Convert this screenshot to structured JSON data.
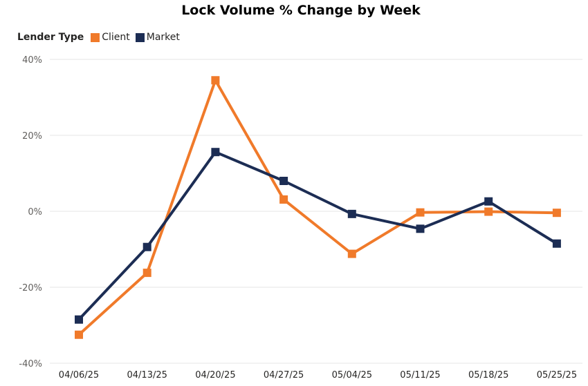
{
  "chart_data": {
    "type": "line",
    "title": "Lock Volume % Change by Week",
    "legend_title": "Lender Type",
    "categories": [
      "04/06/25",
      "04/13/25",
      "04/20/25",
      "04/27/25",
      "05/04/25",
      "05/11/25",
      "05/18/25",
      "05/25/25"
    ],
    "ylim": [
      -40,
      40
    ],
    "yticks": [
      40,
      20,
      0,
      -20,
      -40
    ],
    "ytick_labels": [
      "40%",
      "20%",
      "0%",
      "-20%",
      "-40%"
    ],
    "grid": true,
    "legend_position": "top-left",
    "series": [
      {
        "name": "Client",
        "color": "#F07A2A",
        "values": [
          -32.5,
          -16.2,
          34.5,
          3.1,
          -11.2,
          -0.3,
          -0.1,
          -0.4
        ]
      },
      {
        "name": "Market",
        "color": "#1C2D54",
        "values": [
          -28.5,
          -9.4,
          15.6,
          8.0,
          -0.7,
          -4.6,
          2.6,
          -8.5
        ]
      }
    ]
  }
}
